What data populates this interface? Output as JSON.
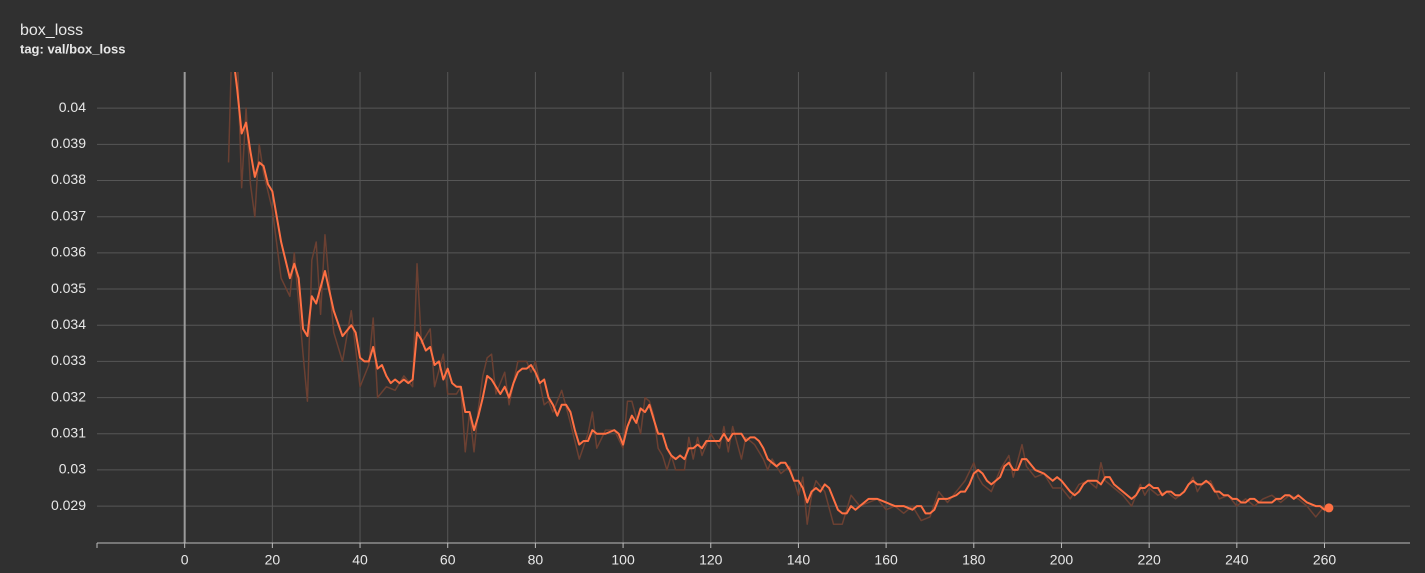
{
  "chart_data": {
    "type": "line",
    "title": "box_loss",
    "subtitle": "tag: val/box_loss",
    "xlim": [
      -20,
      279.5
    ],
    "xticks": [
      0,
      20,
      40,
      60,
      80,
      100,
      120,
      140,
      160,
      180,
      200,
      220,
      240,
      260
    ],
    "ylim": [
      0.02798,
      0.041
    ],
    "yticks": [
      0.029,
      0.03,
      0.031,
      0.032,
      0.033,
      0.034,
      0.035,
      0.036,
      0.037,
      0.038,
      0.039,
      0.04
    ],
    "grid": true,
    "series": [
      {
        "color": "#6b4032",
        "x": [
          10,
          11,
          12,
          13,
          14,
          15,
          16,
          17,
          18,
          20,
          22,
          24,
          25,
          27,
          28,
          29,
          30,
          31,
          32,
          34,
          36,
          38,
          40,
          42,
          43,
          44,
          46,
          48,
          50,
          52,
          53,
          54,
          56,
          57,
          59,
          60,
          62,
          63,
          64,
          65,
          66,
          67,
          68,
          69,
          70,
          71,
          73,
          74,
          76,
          78,
          79,
          80,
          82,
          83,
          84,
          86,
          88,
          90,
          92,
          93,
          94,
          96,
          98,
          100,
          101,
          102,
          104,
          105,
          106,
          107,
          108,
          109,
          110,
          111,
          112,
          114,
          115,
          116,
          117,
          118,
          120,
          122,
          123,
          124,
          125,
          127,
          128,
          130,
          132,
          133,
          134,
          136,
          138,
          140,
          141,
          142,
          143,
          144,
          146,
          148,
          150,
          152,
          154,
          156,
          158,
          160,
          162,
          164,
          166,
          168,
          170,
          172,
          174,
          176,
          178,
          180,
          181,
          182,
          184,
          186,
          188,
          189,
          191,
          192,
          194,
          196,
          198,
          200,
          202,
          204,
          206,
          208,
          209,
          210,
          212,
          214,
          216,
          218,
          219,
          220,
          222,
          224,
          226,
          228,
          230,
          231,
          232,
          234,
          236,
          238,
          240,
          242,
          244,
          246,
          248,
          250,
          252,
          254,
          256,
          258,
          260,
          261
        ],
        "values": [
          0.0385,
          0.0428,
          0.0415,
          0.0378,
          0.04,
          0.0379,
          0.037,
          0.039,
          0.0382,
          0.0372,
          0.0353,
          0.0348,
          0.036,
          0.0332,
          0.0319,
          0.0358,
          0.0363,
          0.0343,
          0.0365,
          0.0338,
          0.033,
          0.0344,
          0.0323,
          0.0329,
          0.0342,
          0.032,
          0.0323,
          0.0322,
          0.0326,
          0.0323,
          0.0357,
          0.0335,
          0.0339,
          0.0323,
          0.0332,
          0.0321,
          0.0321,
          0.0323,
          0.0305,
          0.0316,
          0.0305,
          0.0317,
          0.0326,
          0.0331,
          0.0332,
          0.0321,
          0.0327,
          0.0318,
          0.033,
          0.033,
          0.0327,
          0.033,
          0.0318,
          0.0319,
          0.0316,
          0.0322,
          0.0313,
          0.0303,
          0.031,
          0.0316,
          0.0306,
          0.0311,
          0.0311,
          0.0306,
          0.0319,
          0.0319,
          0.031,
          0.032,
          0.0319,
          0.0315,
          0.0306,
          0.0304,
          0.03,
          0.0304,
          0.03,
          0.03,
          0.0309,
          0.0303,
          0.0309,
          0.0304,
          0.031,
          0.0306,
          0.0312,
          0.0305,
          0.0312,
          0.0303,
          0.0309,
          0.0307,
          0.0303,
          0.03,
          0.0303,
          0.0299,
          0.0301,
          0.0293,
          0.0298,
          0.0285,
          0.0293,
          0.0297,
          0.0294,
          0.0285,
          0.0285,
          0.0293,
          0.029,
          0.0291,
          0.0292,
          0.0289,
          0.029,
          0.0288,
          0.029,
          0.0286,
          0.0287,
          0.0294,
          0.0291,
          0.0294,
          0.0297,
          0.0302,
          0.0298,
          0.0296,
          0.0294,
          0.03,
          0.0304,
          0.0298,
          0.0307,
          0.0301,
          0.0298,
          0.0299,
          0.0295,
          0.0295,
          0.0292,
          0.0296,
          0.0297,
          0.0295,
          0.0302,
          0.0297,
          0.0295,
          0.0293,
          0.029,
          0.0296,
          0.0293,
          0.0295,
          0.0293,
          0.0294,
          0.0292,
          0.0294,
          0.0298,
          0.0294,
          0.0296,
          0.0297,
          0.0292,
          0.0293,
          0.029,
          0.0292,
          0.029,
          0.0292,
          0.0293,
          0.0291,
          0.0293,
          0.0292,
          0.029,
          0.0287,
          0.029,
          0.0289
        ]
      },
      {
        "color": "#ff7043",
        "x": [
          10,
          11,
          12,
          13,
          14,
          15,
          16,
          17,
          18,
          19,
          20,
          22,
          24,
          25,
          26,
          27,
          28,
          29,
          30,
          32,
          34,
          36,
          38,
          39,
          40,
          41,
          42,
          43,
          44,
          45,
          46,
          47,
          48,
          49,
          50,
          51,
          52,
          53,
          54,
          55,
          56,
          57,
          58,
          59,
          60,
          61,
          62,
          63,
          64,
          65,
          66,
          67,
          68,
          69,
          70,
          71,
          72,
          73,
          74,
          75,
          76,
          77,
          78,
          79,
          80,
          81,
          82,
          83,
          84,
          85,
          86,
          87,
          88,
          89,
          90,
          91,
          92,
          93,
          94,
          96,
          98,
          99,
          100,
          101,
          102,
          103,
          104,
          105,
          106,
          107,
          108,
          109,
          110,
          111,
          112,
          113,
          114,
          115,
          116,
          117,
          118,
          119,
          120,
          122,
          123,
          124,
          125,
          127,
          128,
          129,
          130,
          131,
          132,
          133,
          134,
          135,
          136,
          137,
          138,
          139,
          140,
          141,
          142,
          143,
          144,
          145,
          146,
          147,
          148,
          149,
          150,
          151,
          152,
          153,
          154,
          156,
          157,
          158,
          160,
          162,
          164,
          166,
          167,
          168,
          169,
          170,
          171,
          172,
          174,
          176,
          177,
          178,
          179,
          180,
          181,
          182,
          183,
          184,
          185,
          186,
          187,
          188,
          189,
          190,
          191,
          192,
          194,
          196,
          198,
          199,
          200,
          202,
          203,
          204,
          205,
          206,
          208,
          209,
          210,
          211,
          212,
          214,
          216,
          217,
          218,
          219,
          220,
          221,
          222,
          223,
          224,
          225,
          226,
          227,
          228,
          229,
          230,
          231,
          232,
          233,
          234,
          235,
          236,
          237,
          238,
          239,
          240,
          241,
          242,
          243,
          244,
          245,
          246,
          248,
          249,
          250,
          251,
          252,
          253,
          254,
          255,
          256,
          258,
          259,
          260,
          261
        ],
        "values": [
          0.0425,
          0.0415,
          0.0405,
          0.0393,
          0.0396,
          0.0388,
          0.0381,
          0.0385,
          0.0384,
          0.0379,
          0.0377,
          0.0363,
          0.0353,
          0.0357,
          0.0353,
          0.0339,
          0.0337,
          0.0348,
          0.0346,
          0.0355,
          0.0344,
          0.0337,
          0.034,
          0.0338,
          0.0331,
          0.033,
          0.033,
          0.0334,
          0.0328,
          0.0329,
          0.0326,
          0.0324,
          0.0325,
          0.0324,
          0.0325,
          0.0324,
          0.0325,
          0.0338,
          0.0336,
          0.0333,
          0.0334,
          0.0329,
          0.033,
          0.0325,
          0.0328,
          0.0324,
          0.0323,
          0.0323,
          0.0316,
          0.0316,
          0.0311,
          0.0315,
          0.032,
          0.0326,
          0.0325,
          0.0323,
          0.0321,
          0.0323,
          0.032,
          0.0324,
          0.0327,
          0.0328,
          0.0328,
          0.0329,
          0.0327,
          0.0324,
          0.0325,
          0.032,
          0.0318,
          0.0315,
          0.0318,
          0.0318,
          0.0316,
          0.0311,
          0.0307,
          0.0308,
          0.0308,
          0.0311,
          0.031,
          0.031,
          0.0311,
          0.031,
          0.0307,
          0.0312,
          0.0315,
          0.0313,
          0.0317,
          0.0316,
          0.0318,
          0.0314,
          0.031,
          0.031,
          0.0306,
          0.0304,
          0.0303,
          0.0304,
          0.0303,
          0.0306,
          0.0306,
          0.0307,
          0.0306,
          0.0308,
          0.0308,
          0.0308,
          0.031,
          0.0308,
          0.031,
          0.031,
          0.0308,
          0.0309,
          0.0309,
          0.0308,
          0.0306,
          0.0303,
          0.0302,
          0.0301,
          0.0302,
          0.0302,
          0.03,
          0.0297,
          0.0297,
          0.0295,
          0.0291,
          0.0294,
          0.0295,
          0.0294,
          0.0296,
          0.0295,
          0.0292,
          0.0289,
          0.0288,
          0.0288,
          0.029,
          0.0289,
          0.029,
          0.0292,
          0.0292,
          0.0292,
          0.0291,
          0.029,
          0.029,
          0.0289,
          0.029,
          0.029,
          0.0288,
          0.0288,
          0.0289,
          0.0292,
          0.0292,
          0.0293,
          0.0294,
          0.0294,
          0.0296,
          0.0299,
          0.03,
          0.0299,
          0.0297,
          0.0296,
          0.0297,
          0.0298,
          0.0301,
          0.0302,
          0.03,
          0.03,
          0.0303,
          0.0303,
          0.03,
          0.0299,
          0.0297,
          0.0298,
          0.0297,
          0.0294,
          0.0293,
          0.0294,
          0.0296,
          0.0297,
          0.0297,
          0.0296,
          0.0298,
          0.0298,
          0.0296,
          0.0294,
          0.0292,
          0.0293,
          0.0295,
          0.0295,
          0.0296,
          0.0295,
          0.0295,
          0.0293,
          0.0294,
          0.0294,
          0.0293,
          0.0293,
          0.0294,
          0.0296,
          0.0297,
          0.0296,
          0.0296,
          0.0297,
          0.0296,
          0.0294,
          0.0294,
          0.0293,
          0.0293,
          0.0292,
          0.0292,
          0.0291,
          0.0291,
          0.0292,
          0.0292,
          0.0291,
          0.0291,
          0.0291,
          0.0292,
          0.0292,
          0.0293,
          0.0293,
          0.0292,
          0.0293,
          0.0292,
          0.0291,
          0.029,
          0.029,
          0.0289,
          0.02895
        ]
      }
    ]
  }
}
